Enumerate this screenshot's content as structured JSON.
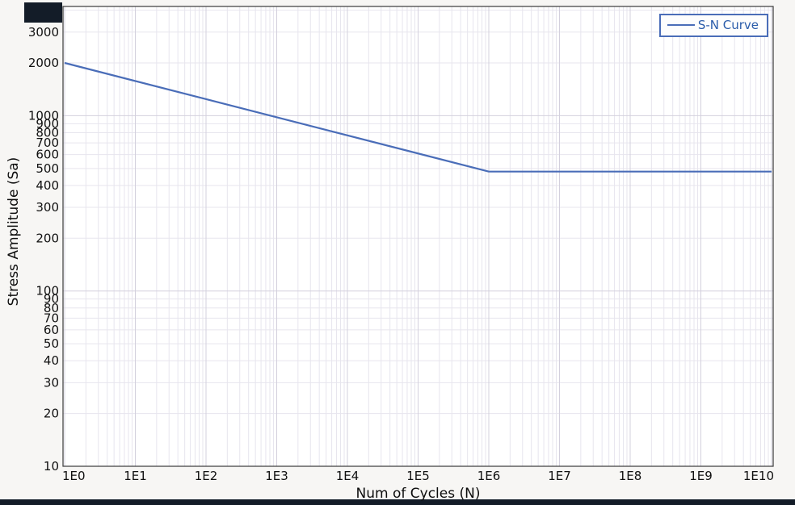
{
  "colors": {
    "line": "#4a6db8",
    "legend_text": "#2a5caa",
    "legend_border": "#4a6db8",
    "grid_minor": "#e7e5ee",
    "grid_major": "#d3d0dd",
    "plot_border": "#3a3a3a",
    "plot_bg": "#ffffff",
    "tick_text": "#111111",
    "edge_bar": "#131c28"
  },
  "chart_data": {
    "type": "line",
    "title": "",
    "xlabel": "Num of Cycles (N)",
    "ylabel": "Stress Amplitude (Sa)",
    "x_scale": "log",
    "y_scale": "log",
    "xlim": [
      1,
      10000000000
    ],
    "ylim": [
      10,
      4200
    ],
    "grid": true,
    "x_ticks": [
      "1E0",
      "1E1",
      "1E2",
      "1E3",
      "1E4",
      "1E5",
      "1E6",
      "1E7",
      "1E8",
      "1E9",
      "1E10"
    ],
    "x_tick_values": [
      1,
      10,
      100,
      1000,
      10000,
      100000,
      1000000,
      10000000,
      100000000,
      1000000000,
      10000000000
    ],
    "y_tick_labels": [
      "10",
      "20",
      "30",
      "40",
      "50",
      "60",
      "70",
      "80",
      "90",
      "100",
      "200",
      "300",
      "400",
      "500",
      "600",
      "700",
      "800",
      "900",
      "1000",
      "2000",
      "3000"
    ],
    "y_tick_values": [
      10,
      20,
      30,
      40,
      50,
      60,
      70,
      80,
      90,
      100,
      200,
      300,
      400,
      500,
      600,
      700,
      800,
      900,
      1000,
      2000,
      3000
    ],
    "legend": {
      "position": "top-right",
      "entries": [
        "S-N Curve"
      ]
    },
    "series": [
      {
        "name": "S-N Curve",
        "color": "#4a6db8",
        "points": [
          [
            1,
            2000
          ],
          [
            1000000,
            480
          ],
          [
            10000000000,
            480
          ]
        ]
      }
    ]
  }
}
